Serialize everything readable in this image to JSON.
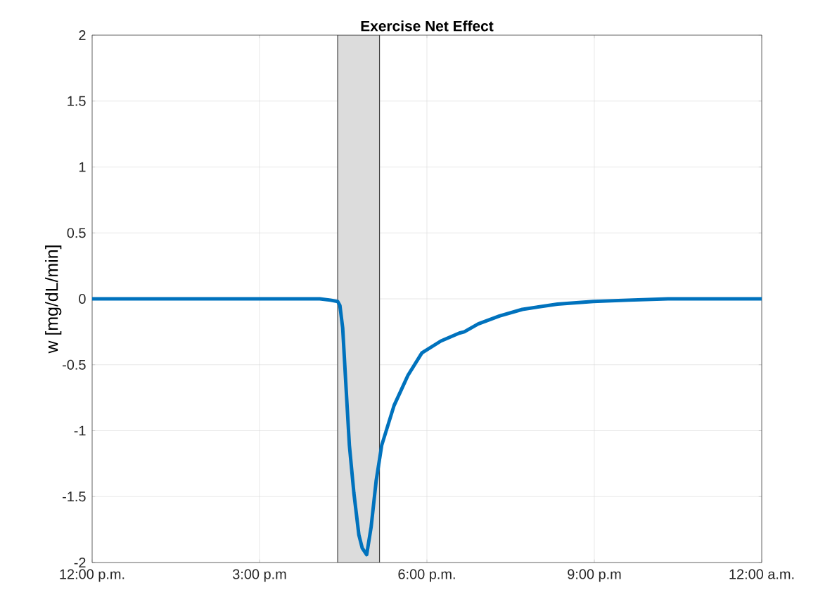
{
  "chart_data": {
    "type": "line",
    "title": "Exercise Net Effect",
    "ylabel": "w [mg/dL/min]",
    "x": [
      12,
      16.08,
      16.27,
      16.4,
      16.44,
      16.49,
      16.55,
      16.61,
      16.69,
      16.78,
      16.84,
      16.92,
      17.0,
      17.09,
      17.19,
      17.41,
      17.66,
      17.91,
      18.25,
      18.58,
      18.67,
      18.92,
      19.3,
      19.71,
      20.34,
      20.98,
      21.61,
      22.32,
      24
    ],
    "series": [
      {
        "color": "#0072bd",
        "values": [
          0,
          0,
          -0.01,
          -0.02,
          -0.05,
          -0.22,
          -0.67,
          -1.11,
          -1.47,
          -1.79,
          -1.89,
          -1.94,
          -1.73,
          -1.38,
          -1.11,
          -0.81,
          -0.58,
          -0.41,
          -0.32,
          -0.26,
          -0.25,
          -0.19,
          -0.13,
          -0.08,
          -0.04,
          -0.02,
          -0.01,
          0,
          0
        ]
      }
    ],
    "xlim": [
      12,
      24
    ],
    "xticks": [
      {
        "value": 12,
        "label": "12:00 p.m."
      },
      {
        "value": 15,
        "label": "3:00 p.m"
      },
      {
        "value": 18,
        "label": "6:00 p.m."
      },
      {
        "value": 21,
        "label": "9:00 p.m"
      },
      {
        "value": 24,
        "label": "12:00 a.m."
      }
    ],
    "ylim": [
      -2,
      2
    ],
    "yticks": [
      -2,
      -1.5,
      -1,
      -0.5,
      0,
      0.5,
      1,
      1.5,
      2
    ],
    "bands": [
      {
        "axis": "x",
        "from": 16.4,
        "to": 17.15,
        "color": "#dcdcdc"
      }
    ],
    "grid": true,
    "marker": "none",
    "line_style": "solid"
  }
}
